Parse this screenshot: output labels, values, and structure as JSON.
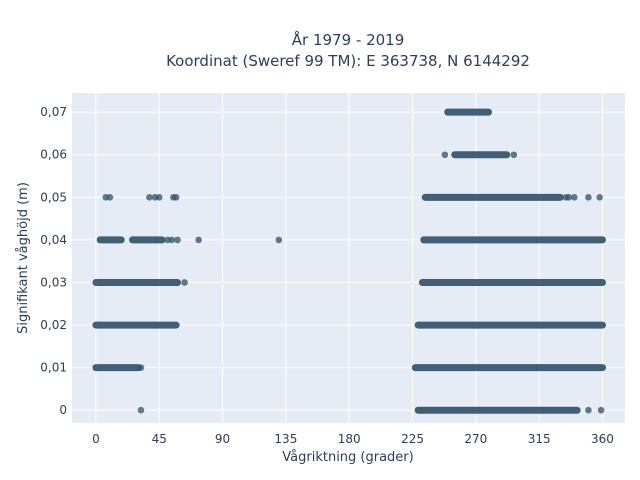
{
  "chart_data": {
    "type": "scatter",
    "title_line1": "År 1979 - 2019",
    "title_line2": "Koordinat (Sweref 99 TM): E 363738, N 6144292",
    "xlabel": "Vågriktning (grader)",
    "ylabel": "Signifikant våghöjd (m)",
    "xlim": [
      -17,
      376
    ],
    "ylim": [
      -0.003,
      0.0745
    ],
    "x_ticks": [
      0,
      45,
      90,
      135,
      180,
      225,
      270,
      315,
      360
    ],
    "x_tick_labels": [
      "0",
      "45",
      "90",
      "135",
      "180",
      "225",
      "270",
      "315",
      "360"
    ],
    "y_ticks": [
      0,
      0.01,
      0.02,
      0.03,
      0.04,
      0.05,
      0.06,
      0.07
    ],
    "y_tick_labels": [
      "0",
      "0,01",
      "0,02",
      "0,03",
      "0,04",
      "0,05",
      "0,06",
      "0,07"
    ],
    "grid": true,
    "colors": {
      "marker": "#2e5068",
      "plot_bg": "#e5ecf6",
      "grid": "#ffffff",
      "text": "#2a3f5f"
    },
    "series": [
      {
        "bands": [
          {
            "y": 0.07,
            "x_from": 250,
            "x_to": 279
          },
          {
            "y": 0.06,
            "x_from": 255,
            "x_to": 292
          },
          {
            "y": 0.05,
            "x_from": 234,
            "x_to": 330
          },
          {
            "y": 0.04,
            "x_from": 233,
            "x_to": 360
          },
          {
            "y": 0.03,
            "x_from": 232,
            "x_to": 360
          },
          {
            "y": 0.02,
            "x_from": 0,
            "x_to": 57
          },
          {
            "y": 0.02,
            "x_from": 229,
            "x_to": 360
          },
          {
            "y": 0.01,
            "x_from": 0,
            "x_to": 30
          },
          {
            "y": 0.01,
            "x_from": 227,
            "x_to": 360
          },
          {
            "y": 0.03,
            "x_from": 0,
            "x_to": 58
          },
          {
            "y": 0.04,
            "x_from": 3,
            "x_to": 18
          },
          {
            "y": 0.04,
            "x_from": 26,
            "x_to": 47
          },
          {
            "y": 0.0,
            "x_from": 229,
            "x_to": 342
          }
        ],
        "points": [
          {
            "x": 297,
            "y": 0.06
          },
          {
            "x": 248,
            "y": 0.06
          },
          {
            "x": 7,
            "y": 0.05
          },
          {
            "x": 10,
            "y": 0.05
          },
          {
            "x": 38,
            "y": 0.05
          },
          {
            "x": 42,
            "y": 0.05
          },
          {
            "x": 45,
            "y": 0.05
          },
          {
            "x": 55,
            "y": 0.05
          },
          {
            "x": 57,
            "y": 0.05
          },
          {
            "x": 334,
            "y": 0.05
          },
          {
            "x": 340,
            "y": 0.05
          },
          {
            "x": 350,
            "y": 0.05
          },
          {
            "x": 358,
            "y": 0.05
          },
          {
            "x": 336,
            "y": 0.05
          },
          {
            "x": 51,
            "y": 0.04
          },
          {
            "x": 54,
            "y": 0.04
          },
          {
            "x": 58,
            "y": 0.04
          },
          {
            "x": 73,
            "y": 0.04
          },
          {
            "x": 130,
            "y": 0.04
          },
          {
            "x": 63,
            "y": 0.03
          },
          {
            "x": 32,
            "y": 0.01
          },
          {
            "x": 32,
            "y": 0.0
          },
          {
            "x": 359,
            "y": 0.0
          },
          {
            "x": 350,
            "y": 0.0
          }
        ]
      }
    ]
  }
}
